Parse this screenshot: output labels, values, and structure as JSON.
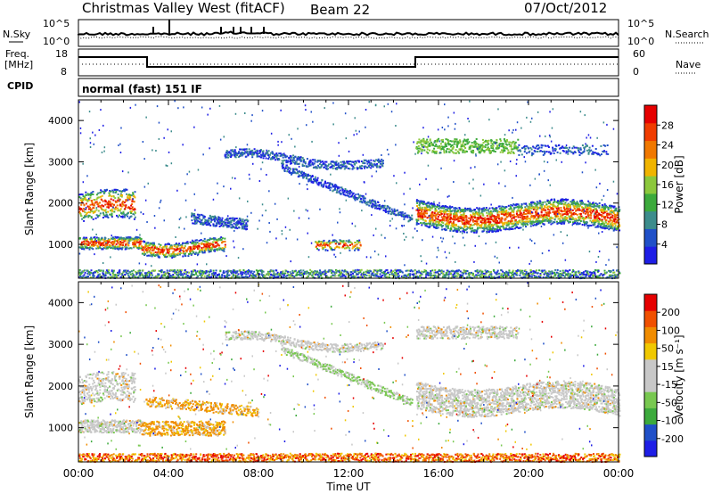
{
  "header": {
    "title": "Christmas Valley West (fitACF)",
    "beam": "Beam 22",
    "date": "07/Oct/2012"
  },
  "left_labels": {
    "nsky": "N.Sky",
    "freq_line1": "Freq.",
    "freq_line2": "[MHz]",
    "cpid": "CPID"
  },
  "right_labels": {
    "nsearch": "N.Search",
    "nave": "Nave"
  },
  "cpid_text": "normal (fast) 151 IF",
  "noise_axis": {
    "top": "10^5",
    "bottom": "10^0"
  },
  "freq_axis": {
    "left_top": "18",
    "left_bottom": "8",
    "right_top": "60",
    "right_bottom": "0"
  },
  "colors": {
    "power": [
      "#1e1ee6",
      "#2050c8",
      "#3c8c8c",
      "#3caa3c",
      "#8cc83c",
      "#f0b400",
      "#f07800",
      "#f03c00",
      "#e60000"
    ],
    "velocity": [
      "#e60000",
      "#f05000",
      "#f08c00",
      "#f0c800",
      "#c8c8c8",
      "#c8c8c8",
      "#78c850",
      "#3caa3c",
      "#2050c8",
      "#1e1ee6"
    ]
  },
  "chart_data": [
    {
      "type": "heatmap",
      "name": "power",
      "ylabel": "Slant Range [km]",
      "ylim": [
        180,
        4500
      ],
      "yticks": [
        "1000",
        "2000",
        "3000",
        "4000"
      ],
      "xlim": [
        0,
        24
      ],
      "colorbar_label": "Power [dB]",
      "colorbar_ticks": [
        "4",
        "8",
        "12",
        "16",
        "20",
        "24",
        "28"
      ],
      "colorbar_range": [
        0,
        32
      ]
    },
    {
      "type": "heatmap",
      "name": "velocity",
      "ylabel": "Slant Range [km]",
      "ylim": [
        180,
        4500
      ],
      "yticks": [
        "1000",
        "2000",
        "3000",
        "4000"
      ],
      "xlim": [
        0,
        24
      ],
      "xlabel": "Time UT",
      "xticks": [
        "00:00",
        "04:00",
        "08:00",
        "12:00",
        "16:00",
        "20:00",
        "00:00"
      ],
      "colorbar_label": "Velocity [m s⁻¹]",
      "colorbar_ticks": [
        "200",
        "100",
        "50",
        "15",
        "-15",
        "-50",
        "-100",
        "-200"
      ]
    }
  ]
}
